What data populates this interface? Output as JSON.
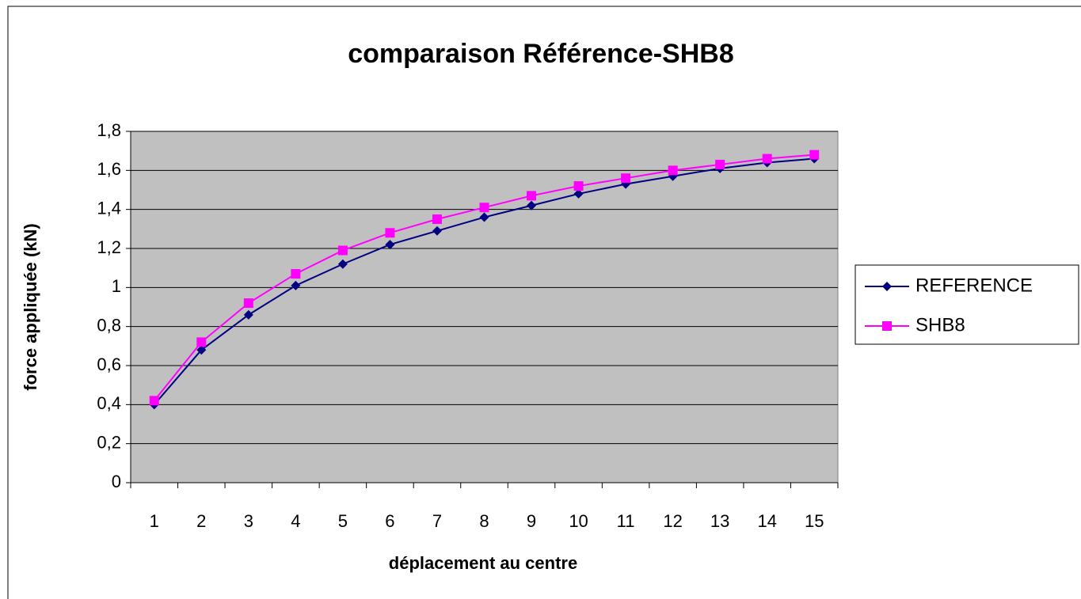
{
  "chart_data": {
    "type": "line",
    "title": "comparaison Référence-SHB8",
    "xlabel": "déplacement au centre",
    "ylabel": "force appliquée (kN)",
    "categories": [
      "1",
      "2",
      "3",
      "4",
      "5",
      "6",
      "7",
      "8",
      "9",
      "10",
      "11",
      "12",
      "13",
      "14",
      "15"
    ],
    "series": [
      {
        "name": "REFERENCE",
        "color": "#000080",
        "marker": "diamond",
        "values": [
          0.4,
          0.68,
          0.86,
          1.01,
          1.12,
          1.22,
          1.29,
          1.36,
          1.42,
          1.48,
          1.53,
          1.57,
          1.61,
          1.64,
          1.66
        ]
      },
      {
        "name": "SHB8",
        "color": "#ff00ff",
        "marker": "square",
        "values": [
          0.42,
          0.72,
          0.92,
          1.07,
          1.19,
          1.28,
          1.35,
          1.41,
          1.47,
          1.52,
          1.56,
          1.6,
          1.63,
          1.66,
          1.68
        ]
      }
    ],
    "ylim": [
      0,
      1.8
    ],
    "yticks": [
      0,
      {
        "value": 0.2,
        "label": "0,2"
      },
      {
        "value": 0.4,
        "label": "0,4"
      },
      {
        "value": 0.6,
        "label": "0,6"
      },
      {
        "value": 0.8,
        "label": "0,8"
      },
      1,
      {
        "value": 1.2,
        "label": "1,2"
      },
      {
        "value": 1.4,
        "label": "1,4"
      },
      {
        "value": 1.6,
        "label": "1,6"
      },
      {
        "value": 1.8,
        "label": "1,8"
      }
    ],
    "grid": true,
    "legend": "right"
  }
}
